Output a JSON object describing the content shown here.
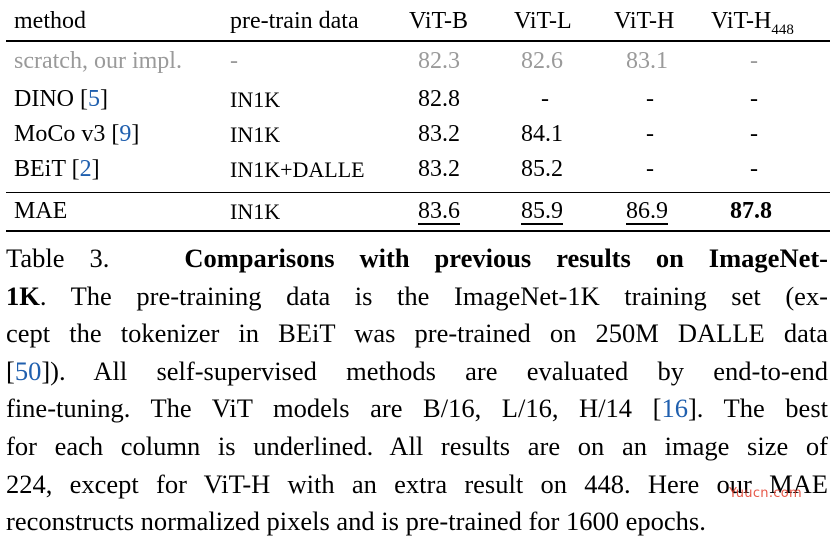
{
  "table": {
    "headers": [
      "method",
      "pre-train data",
      "ViT-B",
      "ViT-L",
      "ViT-H",
      "ViT-H",
      "448"
    ],
    "rows": [
      {
        "method": "scratch, our impl.",
        "ref": "",
        "data": "-",
        "b": "82.3",
        "l": "82.6",
        "h": "83.1",
        "h448": "-"
      },
      {
        "method": "DINO ",
        "ref": "5",
        "data": "IN1K",
        "b": "82.8",
        "l": "-",
        "h": "-",
        "h448": "-"
      },
      {
        "method": "MoCo v3 ",
        "ref": "9",
        "data": "IN1K",
        "b": "83.2",
        "l": "84.1",
        "h": "-",
        "h448": "-"
      },
      {
        "method": "BEiT ",
        "ref": "2",
        "data": "IN1K+DALLE",
        "b": "83.2",
        "l": "85.2",
        "h": "-",
        "h448": "-"
      },
      {
        "method": "MAE",
        "ref": "",
        "data": "IN1K",
        "b": "83.6",
        "l": "85.9",
        "h": "86.9",
        "h448": "87.8"
      }
    ]
  },
  "caption": {
    "l1a": "Table 3.",
    "l1b": "Comparisons with previous results on ImageNet-",
    "l2a": "1K",
    "l2b": ". The pre-training data is the ImageNet-1K training set (ex-",
    "l3": "cept the tokenizer in BEiT was pre-trained on 250M DALLE data",
    "l4a": "[",
    "l4ref": "50",
    "l4b": "]).  All self-supervised methods are evaluated by end-to-end",
    "l5a": "fine-tuning. The ViT models are B/16, L/16, H/14 [",
    "l5ref": "16",
    "l5b": "]. The best",
    "l6": "for each column is underlined. All results are on an image size of",
    "l7": "224, except for ViT-H with an extra result on 448. Here our MAE",
    "l8": "reconstructs normalized pixels and is pre-trained for 1600 epochs."
  },
  "watermark": "Yuucn.com",
  "colors": {
    "gray": "#9a9a9a",
    "link": "#1f5fae",
    "watermark": "#e23b2a"
  }
}
